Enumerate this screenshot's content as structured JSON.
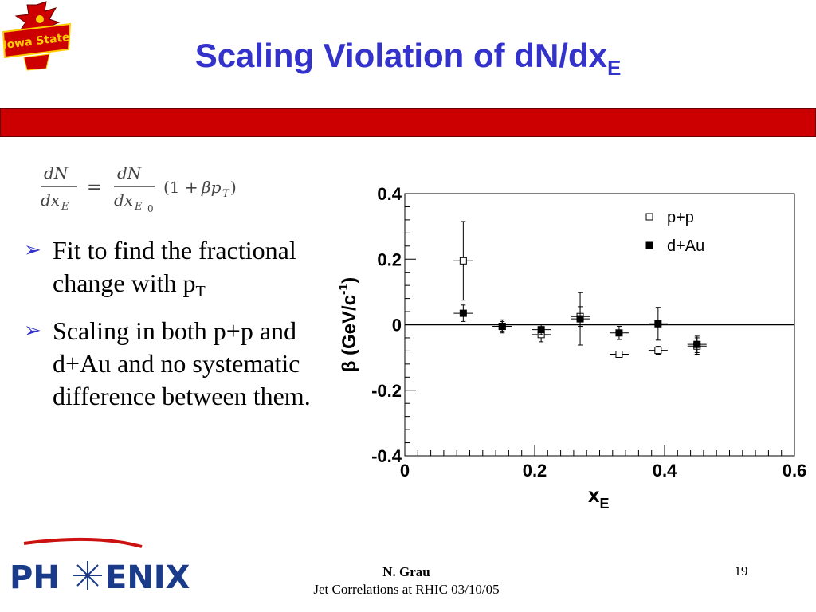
{
  "slide": {
    "title_main": "Scaling Violation of dN/dx",
    "title_sub": "E"
  },
  "logos": {
    "top_left": "Iowa State Cyclones",
    "bottom_left": "PHENIX"
  },
  "colors": {
    "title": "#3333cc",
    "bar": "#cc0000",
    "bullet_arrow": "#3333cc",
    "phenix_red": "#cc1111"
  },
  "bullets": [
    {
      "text": "Fit to find the fractional change with p",
      "sub": "T"
    },
    {
      "text": "Scaling in both p+p and d+Au and no systematic difference between them.",
      "sub": ""
    }
  ],
  "footer": {
    "author": "N. Grau",
    "talk": "Jet Correlations at RHIC 03/10/05",
    "page": "19"
  },
  "chart_data": {
    "type": "scatter",
    "xlabel": "x",
    "xlabel_sub": "E",
    "ylabel": "β (GeV/c",
    "ylabel_sup": "-1",
    "ylabel_close": ")",
    "xlim": [
      0,
      0.6
    ],
    "ylim": [
      -0.4,
      0.4
    ],
    "xticks": [
      0,
      0.2,
      0.4,
      0.6
    ],
    "xtick_labels": [
      "0",
      "0.2",
      "0.4",
      "0.6"
    ],
    "yticks": [
      0.4,
      0.2,
      0,
      -0.2,
      -0.4
    ],
    "ytick_labels": [
      "0.4",
      "0.2",
      "0",
      "-0.2",
      "-0.4"
    ],
    "zero_line": true,
    "legend_position": "top-right",
    "series": [
      {
        "name": "p+p",
        "marker": "open-square",
        "x": [
          0.09,
          0.15,
          0.21,
          0.27,
          0.33,
          0.39,
          0.45
        ],
        "y": [
          0.195,
          -0.005,
          -0.03,
          0.025,
          -0.09,
          -0.078,
          -0.065
        ],
        "err": [
          0.12,
          0.02,
          0.022,
          0.03,
          0.005,
          0.012,
          0.025
        ]
      },
      {
        "name": "d+Au",
        "marker": "filled-square",
        "x": [
          0.09,
          0.15,
          0.21,
          0.27,
          0.33,
          0.39,
          0.45
        ],
        "y": [
          0.035,
          -0.005,
          -0.015,
          0.018,
          -0.025,
          0.003,
          -0.06
        ],
        "err": [
          0.025,
          0.015,
          0.015,
          0.08,
          0.02,
          0.05,
          0.025
        ]
      }
    ]
  }
}
